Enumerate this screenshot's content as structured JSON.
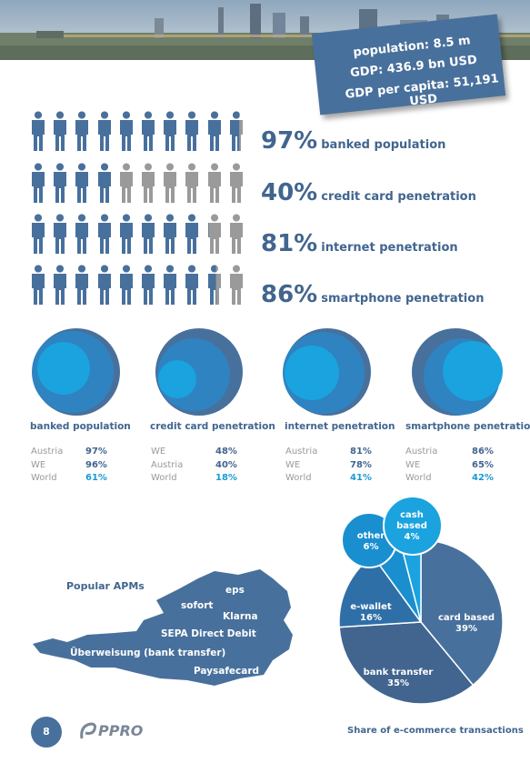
{
  "stats": {
    "population": "population: 8.5 m",
    "gdp": "GDP: 436.9 bn USD",
    "gdp_per_capita": "GDP per capita: 51,191 USD"
  },
  "icon_rows": [
    {
      "pct": "97%",
      "label": "banked population",
      "fill": 0.97
    },
    {
      "pct": "40%",
      "label": "credit card penetration",
      "fill": 0.4
    },
    {
      "pct": "81%",
      "label": "internet penetration",
      "fill": 0.81
    },
    {
      "pct": "86%",
      "label": "smartphone penetration",
      "fill": 0.86
    }
  ],
  "comparisons": [
    {
      "title": "banked population",
      "rows": [
        {
          "region": "Austria",
          "value": "97%"
        },
        {
          "region": "WE",
          "value": "96%"
        },
        {
          "region": "World",
          "value": "61%"
        }
      ]
    },
    {
      "title": "credit card penetration",
      "rows": [
        {
          "region": "WE",
          "value": "48%"
        },
        {
          "region": "Austria",
          "value": "40%"
        },
        {
          "region": "World",
          "value": "18%"
        }
      ]
    },
    {
      "title": "internet penetration",
      "rows": [
        {
          "region": "Austria",
          "value": "81%"
        },
        {
          "region": "WE",
          "value": "78%"
        },
        {
          "region": "World",
          "value": "41%"
        }
      ]
    },
    {
      "title": "smartphone penetration",
      "rows": [
        {
          "region": "Austria",
          "value": "86%"
        },
        {
          "region": "WE",
          "value": "65%"
        },
        {
          "region": "World",
          "value": "42%"
        }
      ]
    }
  ],
  "apms": {
    "title": "Popular APMs",
    "items": [
      "eps",
      "sofort",
      "Klarna",
      "SEPA Direct Debit",
      "Überweisung (bank transfer)",
      "Paysafecard"
    ]
  },
  "chart_data": {
    "type": "pie",
    "title": "Share of e-commerce transactions",
    "slices": [
      {
        "label": "card based",
        "value": 39,
        "text": "39%"
      },
      {
        "label": "bank transfer",
        "value": 35,
        "text": "35%"
      },
      {
        "label": "e-wallet",
        "value": 16,
        "text": "16%"
      },
      {
        "label": "other",
        "value": 6,
        "text": "6%"
      },
      {
        "label": "cash based",
        "value": 4,
        "text": "4%"
      }
    ]
  },
  "footer": {
    "page": "8",
    "logo": "PPRO"
  },
  "colors": {
    "dark": "#41658f",
    "mid": "#48709c",
    "light": "#1a9ad6",
    "grey": "#9a9a9a"
  }
}
